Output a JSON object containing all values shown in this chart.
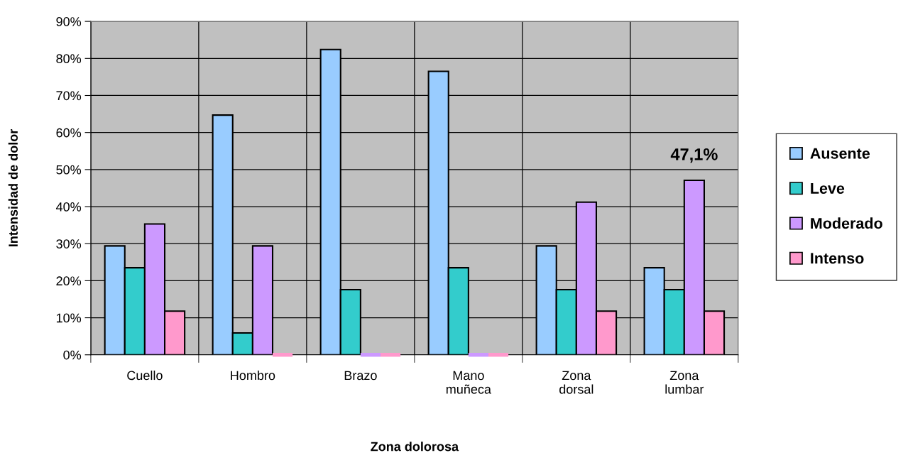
{
  "chart_data": {
    "type": "bar",
    "xlabel": "Zona dolorosa",
    "ylabel": "Intensidad de dolor",
    "categories": [
      "Cuello",
      "Hombro",
      "Brazo",
      "Mano\nmuñeca",
      "Zona\ndorsal",
      "Zona\nlumbar"
    ],
    "series": [
      {
        "name": "Ausente",
        "color": "#99ccff",
        "values": [
          29.4,
          64.7,
          82.4,
          76.5,
          29.4,
          23.5
        ]
      },
      {
        "name": "Leve",
        "color": "#33cccc",
        "values": [
          23.5,
          5.9,
          17.6,
          23.5,
          17.6,
          17.6
        ]
      },
      {
        "name": "Moderado",
        "color": "#cc99ff",
        "values": [
          35.3,
          29.4,
          0,
          0,
          41.2,
          47.1
        ],
        "value_labels": [
          null,
          null,
          null,
          null,
          null,
          "47,1%"
        ]
      },
      {
        "name": "Intenso",
        "color": "#ff99cc",
        "values": [
          11.8,
          0,
          0,
          0,
          11.8,
          11.8
        ]
      }
    ],
    "ylim": [
      0,
      90
    ],
    "yticks": [
      {
        "value": 0,
        "label": "0%"
      },
      {
        "value": 10,
        "label": "10%"
      },
      {
        "value": 20,
        "label": "20%"
      },
      {
        "value": 30,
        "label": "30%"
      },
      {
        "value": 40,
        "label": "40%"
      },
      {
        "value": 50,
        "label": "50%"
      },
      {
        "value": 60,
        "label": "60%"
      },
      {
        "value": 70,
        "label": "70%"
      },
      {
        "value": 80,
        "label": "80%"
      },
      {
        "value": 90,
        "label": "90%"
      }
    ],
    "grid": true,
    "legend": "right"
  }
}
